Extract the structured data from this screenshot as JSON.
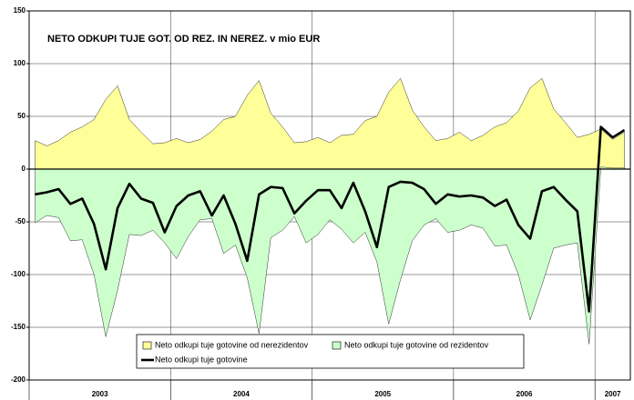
{
  "chart_data": {
    "type": "area",
    "title": "NETO ODKUPI TUJE GOT. OD REZ. IN NEREZ. v mio EUR",
    "category_groups": [
      {
        "label": "2003",
        "count": 12
      },
      {
        "label": "2004",
        "count": 12
      },
      {
        "label": "2005",
        "count": 12
      },
      {
        "label": "2006",
        "count": 12
      },
      {
        "label": "2007",
        "count": 3
      }
    ],
    "ylim": [
      -200,
      150
    ],
    "yticks": [
      -200,
      -150,
      -100,
      -50,
      0,
      50,
      100,
      150
    ],
    "grid": true,
    "series": [
      {
        "name": "Neto odkupi tuje gotovine od nerezidentov",
        "kind": "area",
        "color": "#ffff99",
        "values": [
          27,
          22,
          27,
          35,
          40,
          47,
          66,
          79,
          47,
          35,
          24,
          25,
          29,
          25,
          28,
          36,
          47,
          50,
          70,
          84,
          53,
          40,
          25,
          26,
          30,
          25,
          32,
          33,
          46,
          50,
          73,
          86,
          56,
          40,
          27,
          29,
          35,
          27,
          32,
          40,
          44,
          55,
          77,
          86,
          57,
          44,
          30,
          33,
          38,
          28,
          35
        ]
      },
      {
        "name": "Neto odkupi tuje gotovine od rezidentov",
        "kind": "area",
        "color": "#ccffcc",
        "values": [
          -51,
          -44,
          -46,
          -68,
          -67,
          -100,
          -159,
          -115,
          -62,
          -63,
          -58,
          -70,
          -85,
          -64,
          -48,
          -47,
          -80,
          -72,
          -103,
          -156,
          -65,
          -58,
          -45,
          -70,
          -62,
          -48,
          -57,
          -70,
          -60,
          -88,
          -147,
          -105,
          -68,
          -53,
          -47,
          -60,
          -58,
          -53,
          -56,
          -73,
          -72,
          -100,
          -143,
          -110,
          -75,
          -72,
          -70,
          -166,
          2,
          1,
          1
        ]
      },
      {
        "name": "Neto odkupi tuje gotovine",
        "kind": "line",
        "color": "#000000",
        "values": [
          -24,
          -22,
          -19,
          -33,
          -28,
          -52,
          -95,
          -37,
          -14,
          -28,
          -32,
          -60,
          -35,
          -25,
          -21,
          -44,
          -25,
          -52,
          -87,
          -24,
          -17,
          -18,
          -42,
          -30,
          -20,
          -20,
          -37,
          -13,
          -40,
          -74,
          -17,
          -12,
          -13,
          -19,
          -33,
          -24,
          -26,
          -25,
          -27,
          -35,
          -29,
          -53,
          -66,
          -21,
          -17,
          -29,
          -40,
          -135,
          40,
          30,
          37
        ]
      }
    ]
  }
}
